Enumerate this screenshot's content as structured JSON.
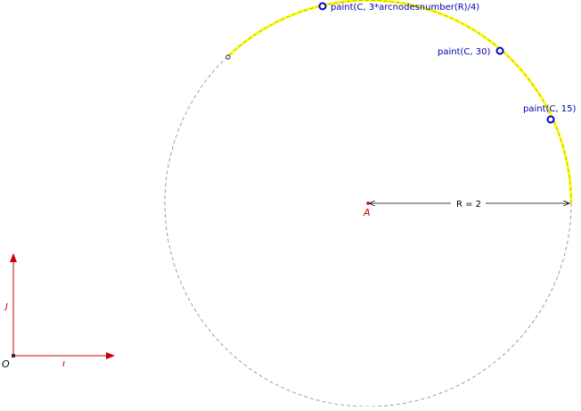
{
  "points": [
    {
      "id": "pt-top",
      "label": "paint(C, 3*arcnodesnumber(R)/4)"
    },
    {
      "id": "pt-30",
      "label": "paint(C, 30)"
    },
    {
      "id": "pt-15",
      "label": "paint(C, 15)"
    }
  ],
  "center_label": "A",
  "radius_label": "R = 2",
  "axes": {
    "origin_label": "O",
    "i_label": "ı",
    "j_label": "ȷ"
  },
  "colors": {
    "circle": "#888888",
    "arc_highlight": "#ffff00",
    "point": "#0000cc",
    "axis": "#cc0000",
    "text": "#000000"
  }
}
